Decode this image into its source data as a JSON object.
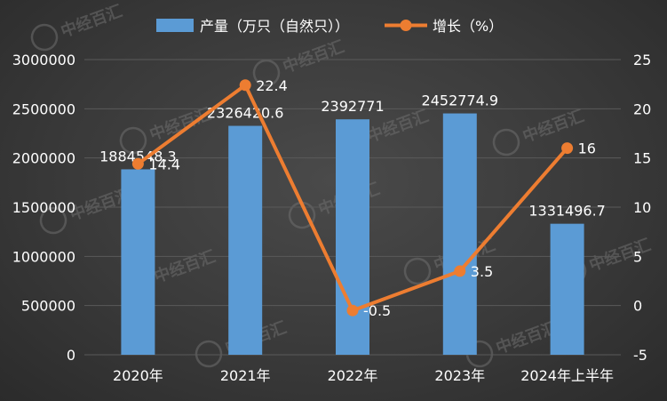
{
  "watermark": {
    "text": "中经百汇"
  },
  "colors": {
    "bar": "#5b9bd5",
    "line": "#ed7d31",
    "text": "#ffffff",
    "grid": "#5a5a5a"
  },
  "chart_data": {
    "type": "bar",
    "categories": [
      "2020年",
      "2021年",
      "2022年",
      "2023年",
      "2024年上半年"
    ],
    "series": [
      {
        "name": "产量（万只（自然只））",
        "type": "bar",
        "axis": "left",
        "values": [
          1884548.3,
          2326420.6,
          2392771,
          2452774.9,
          1331496.7
        ],
        "labels": [
          "1884548.3",
          "2326420.6",
          "2392771",
          "2452774.9",
          "1331496.7"
        ]
      },
      {
        "name": "增长（%）",
        "type": "line",
        "axis": "right",
        "values": [
          14.4,
          22.4,
          -0.5,
          3.5,
          16
        ],
        "labels": [
          "14.4",
          "22.4",
          "-0.5",
          "3.5",
          "16"
        ]
      }
    ],
    "y_left": {
      "min": 0,
      "max": 3000000,
      "step": 500000,
      "tick_labels": [
        "0",
        "500000",
        "1000000",
        "1500000",
        "2000000",
        "2500000",
        "3000000"
      ]
    },
    "y_right": {
      "min": -5,
      "max": 25,
      "step": 5,
      "tick_labels": [
        "-5",
        "0",
        "5",
        "10",
        "15",
        "20",
        "25"
      ]
    },
    "grid": true,
    "legend_position": "top"
  }
}
